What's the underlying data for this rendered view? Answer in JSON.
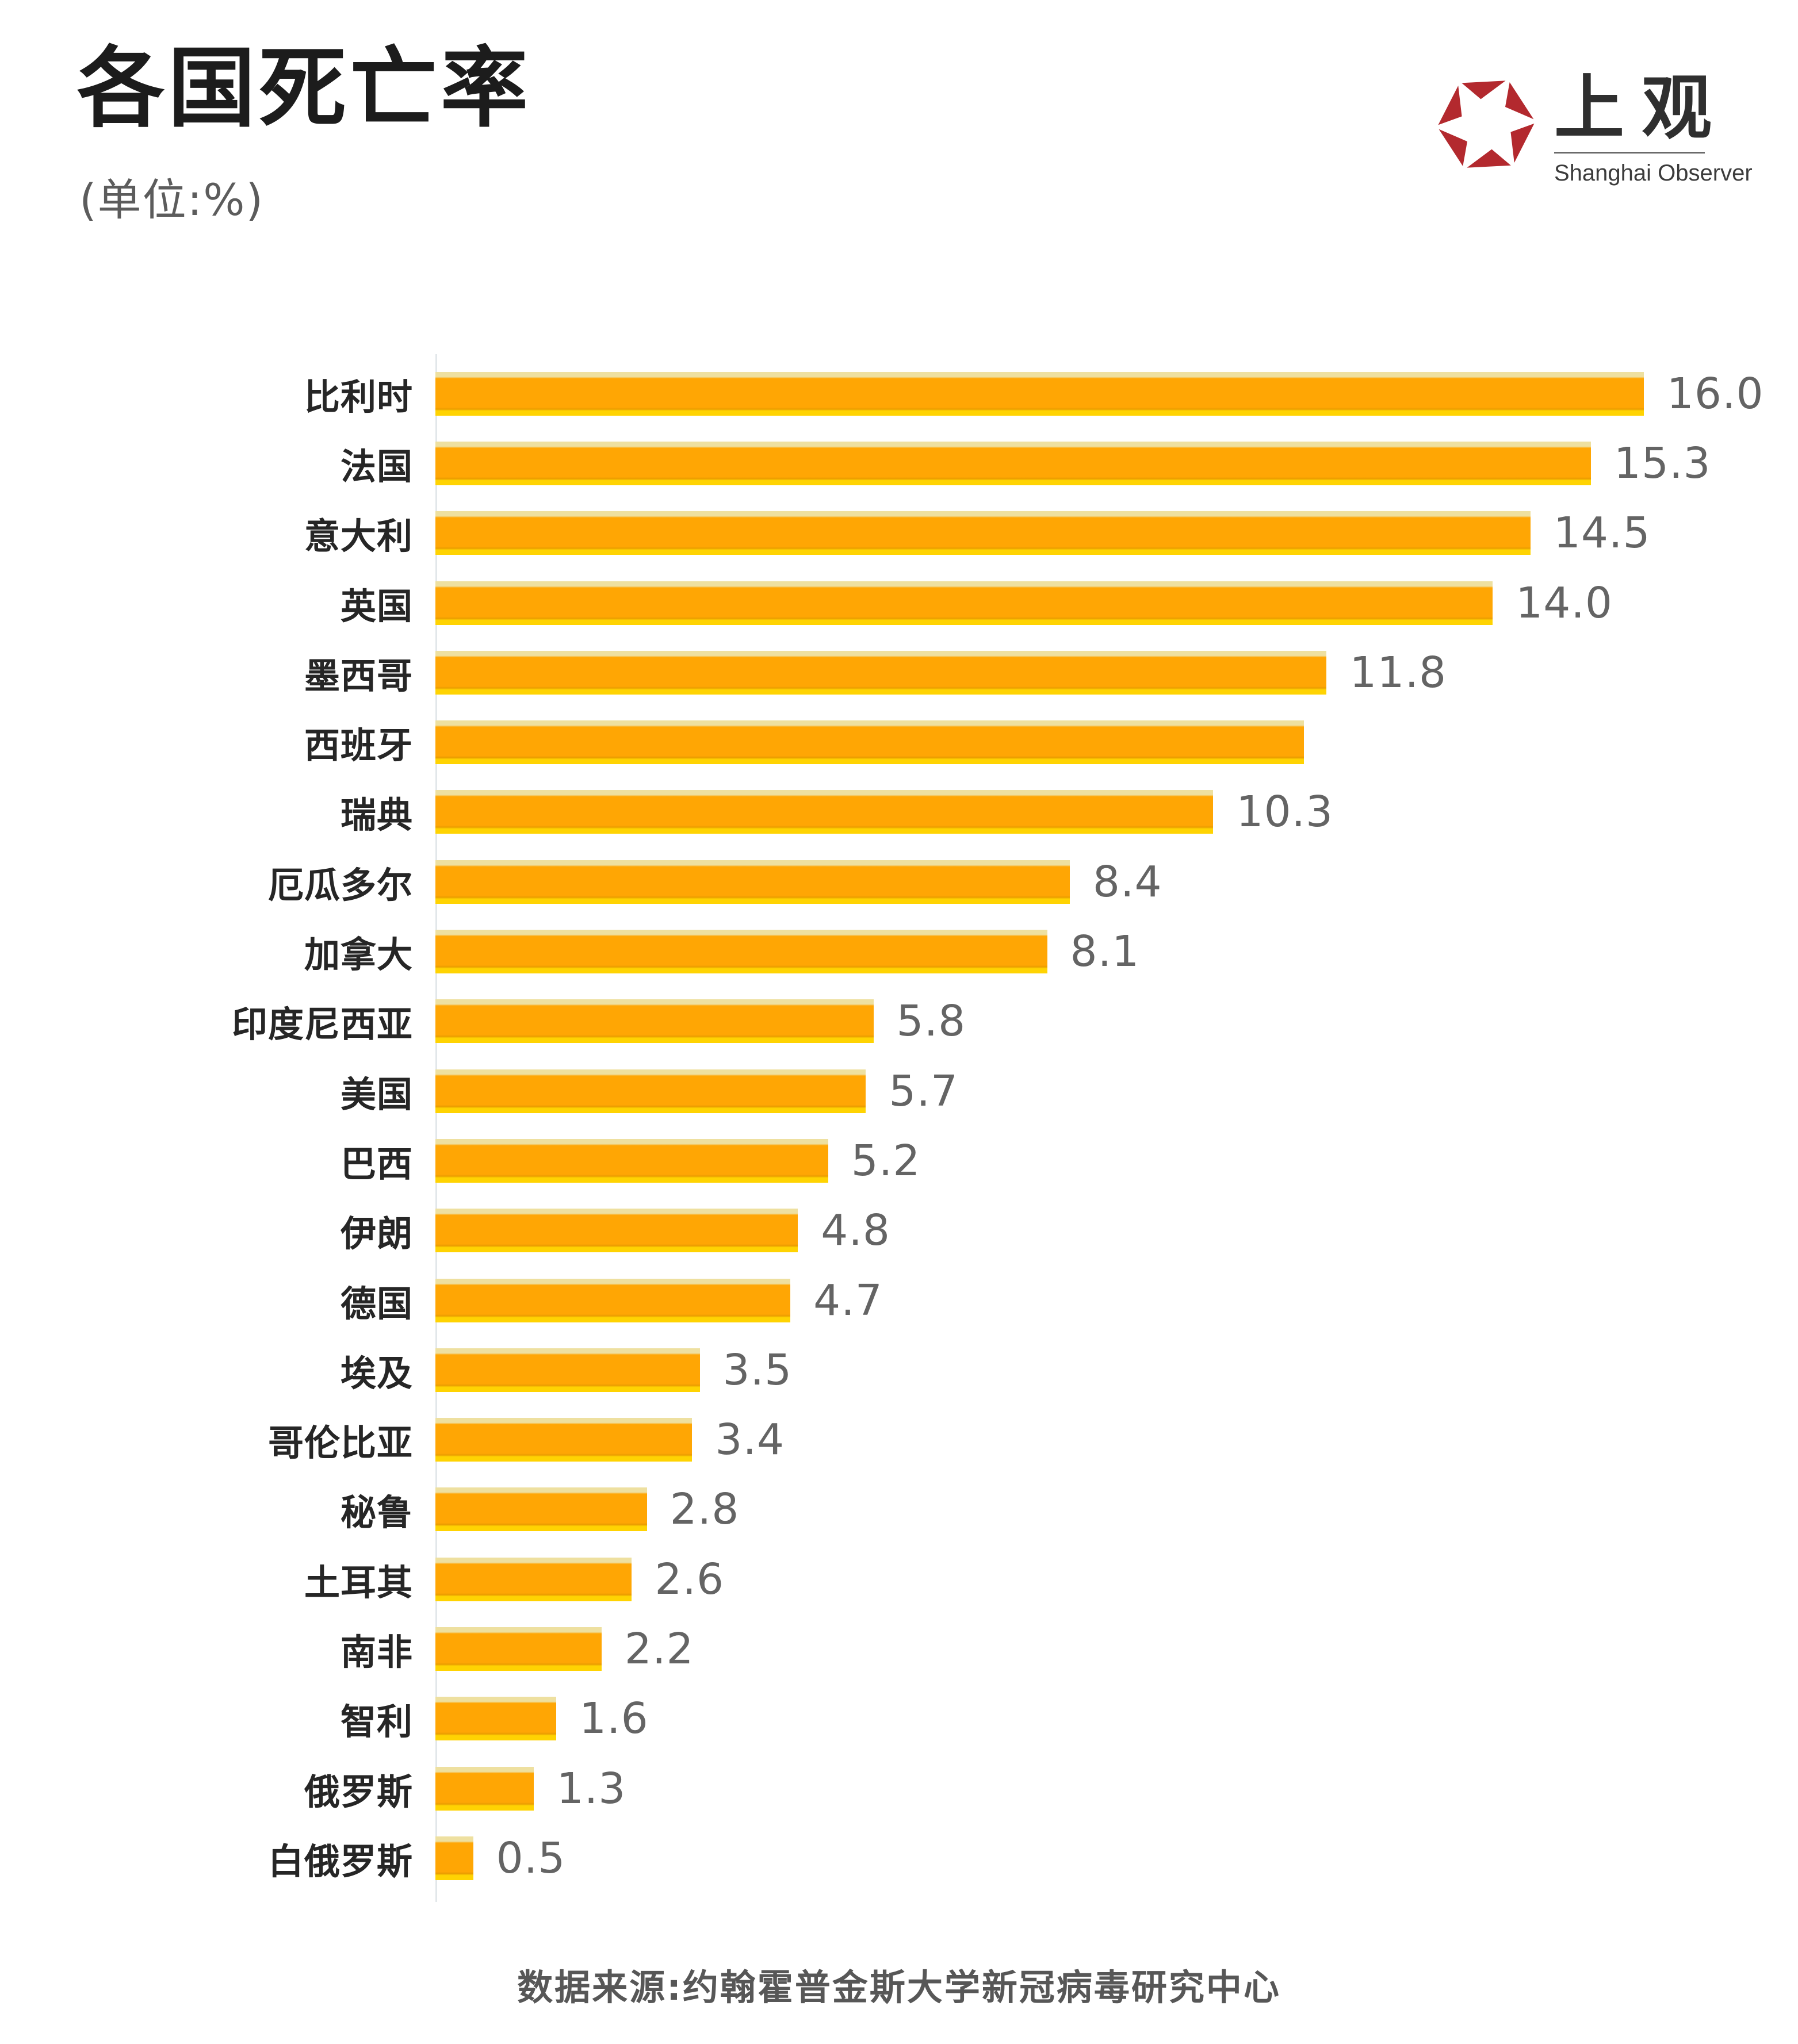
{
  "header": {
    "title": "各国死亡率",
    "subtitle": "(单位:%)",
    "logo": {
      "cn": "上观",
      "en": "Shanghai Observer",
      "mark": "aperture-hexagon-icon",
      "red": "#B3292E"
    }
  },
  "chart_data": {
    "type": "bar",
    "orientation": "horizontal",
    "title": "各国死亡率",
    "unit": "%",
    "xlim": [
      0,
      16.0
    ],
    "grid": false,
    "legend": "none",
    "bar_color": "#FFA604",
    "bar_top_edge_color": "#EEE0A0",
    "bar_bottom_edge_color": "#FFD302",
    "value_label_color": "#646464",
    "category_label_color": "#262626",
    "categories": [
      "比利时",
      "法国",
      "意大利",
      "英国",
      "墨西哥",
      "西班牙",
      "瑞典",
      "厄瓜多尔",
      "加拿大",
      "印度尼西亚",
      "美国",
      "巴西",
      "伊朗",
      "德国",
      "埃及",
      "哥伦比亚",
      "秘鲁",
      "土耳其",
      "南非",
      "智利",
      "俄罗斯",
      "白俄罗斯"
    ],
    "values": [
      16.0,
      15.3,
      14.5,
      14.0,
      11.8,
      11.5,
      10.3,
      8.4,
      8.1,
      5.8,
      5.7,
      5.2,
      4.8,
      4.7,
      3.5,
      3.4,
      2.8,
      2.6,
      2.2,
      1.6,
      1.3,
      0.5
    ],
    "value_labels": [
      "16.0",
      "15.3",
      "14.5",
      "14.0",
      "11.8",
      "",
      "10.3",
      "8.4",
      "8.1",
      "5.8",
      "5.7",
      "5.2",
      "4.8",
      "4.7",
      "3.5",
      "3.4",
      "2.8",
      "2.6",
      "2.2",
      "1.6",
      "1.3",
      "0.5"
    ],
    "note": "西班牙 bar is drawn (length ≈ 11.5) but shows no printed value label in the source image"
  },
  "footer": {
    "source": "数据来源:约翰霍普金斯大学新冠病毒研究中心"
  }
}
